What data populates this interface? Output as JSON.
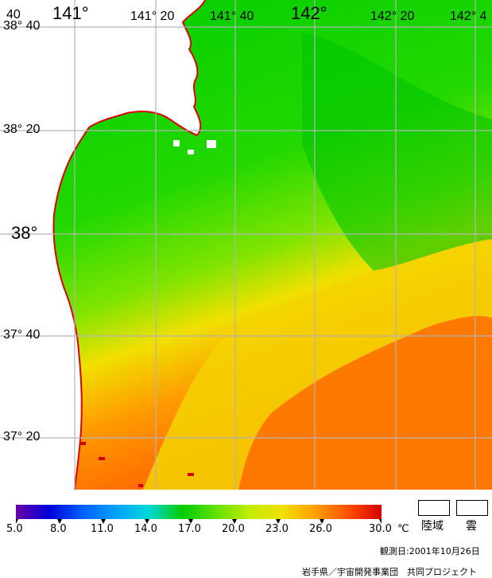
{
  "map": {
    "lat_labels": [
      "38° 40",
      "38° 20",
      "38°",
      "37° 40",
      "37° 20"
    ],
    "lon_labels": [
      "141°",
      "141° 20",
      "141° 40",
      "142°",
      "142° 20",
      "142° 4"
    ],
    "corner_label": "40",
    "coast_color": "#e00000",
    "land_color": "#ffffff",
    "grid_color": "#b4b4b4"
  },
  "colorbar": {
    "ticks": [
      "5.0",
      "8.0",
      "11.0",
      "14.0",
      "17.0",
      "20.0",
      "23.0",
      "26.0",
      "30.0"
    ],
    "unit": "℃",
    "colors": [
      "#6a00a8",
      "#0000d8",
      "#0060ff",
      "#00a0ff",
      "#00d8d8",
      "#00cc00",
      "#60e000",
      "#c0ec00",
      "#f0e000",
      "#ffa000",
      "#ff5000",
      "#d40000"
    ]
  },
  "legend": {
    "land_label": "陸域",
    "cloud_label": "雲"
  },
  "observation": "観測日:2001年10月26日",
  "credit": "岩手県／宇宙開発事業団　共同プロジェクト"
}
